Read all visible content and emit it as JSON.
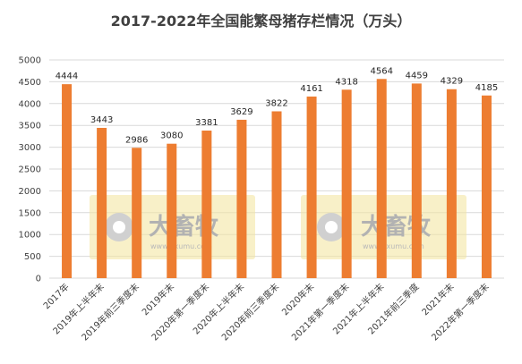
{
  "chart_data": {
    "type": "bar",
    "title": "2017-2022年全国能繁母猪存栏情况（万头）",
    "categories": [
      "2017年",
      "2019年上半年末",
      "2019年前三季度末",
      "2019年末",
      "2020年第一季度末",
      "2020年上半年末",
      "2020年前三季度末",
      "2020年末",
      "2021年第一季度末",
      "2021年上半年末",
      "2021年前三季度",
      "2021年末",
      "2022年第一季度末"
    ],
    "values": [
      4444,
      3443,
      2986,
      3080,
      3381,
      3629,
      3822,
      4161,
      4318,
      4564,
      4459,
      4329,
      4185
    ],
    "ylim": [
      0,
      5000
    ],
    "yticks": [
      0,
      500,
      1000,
      1500,
      2000,
      2500,
      3000,
      3500,
      4000,
      4500,
      5000
    ],
    "grid": true,
    "data_labels": true,
    "bar_color": "#ed7d31"
  },
  "watermark": {
    "brand": "大畜牧",
    "url": "www.dxumu.com"
  }
}
